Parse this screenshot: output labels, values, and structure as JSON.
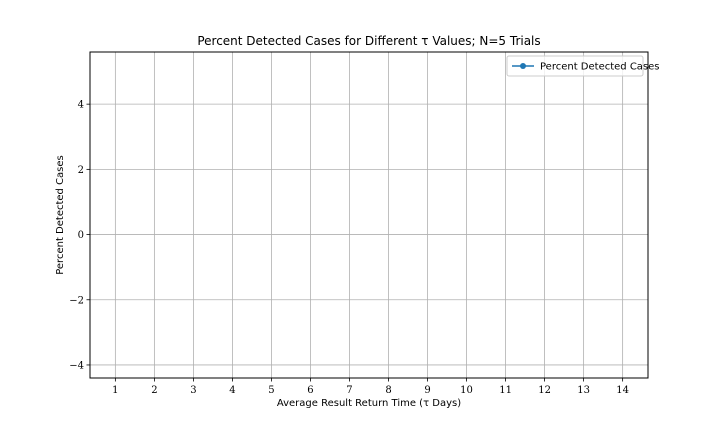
{
  "chart_data": {
    "type": "line",
    "title": "Percent Detected Cases for Different τ Values; N=5 Trials",
    "xlabel": "Average Result Return Time (τ Days)",
    "ylabel": "Percent Detected Cases",
    "x_ticks": [
      1,
      2,
      3,
      4,
      5,
      6,
      7,
      8,
      9,
      10,
      11,
      12,
      13,
      14
    ],
    "y_ticks": [
      -4,
      -2,
      0,
      2,
      4
    ],
    "y_tick_labels": [
      "−4",
      "−2",
      "0",
      "2",
      "4"
    ],
    "xlim": [
      0.35,
      14.65
    ],
    "ylim": [
      -4.4,
      5.6
    ],
    "grid": true,
    "legend_position": "upper right",
    "series": [
      {
        "name": "Percent Detected Cases",
        "color": "#1f77b4",
        "marker": "circle",
        "x": [],
        "y": []
      }
    ]
  }
}
